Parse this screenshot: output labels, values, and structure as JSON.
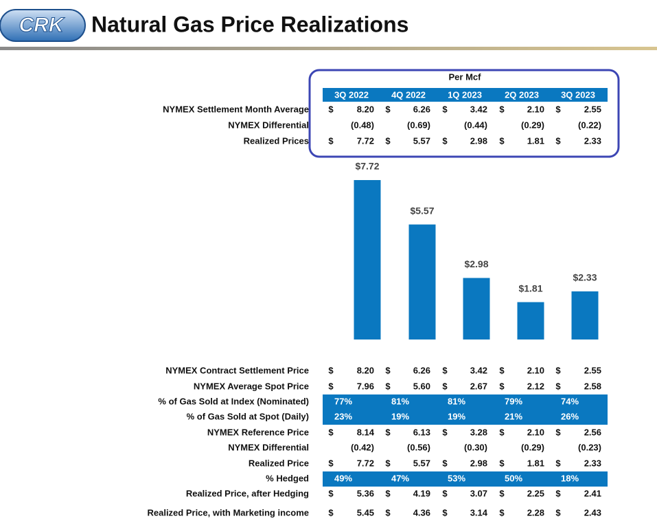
{
  "header": {
    "logo": "CRK",
    "title": "Natural Gas Price Realizations"
  },
  "top_table": {
    "caption": "Per Mcf",
    "columns": [
      "3Q 2022",
      "4Q 2022",
      "1Q 2023",
      "2Q 2023",
      "3Q 2023"
    ],
    "rows": [
      {
        "label": "NYMEX Settlement Month Average",
        "unit": "$",
        "cells": [
          "8.20",
          "6.26",
          "3.42",
          "2.10",
          "2.55"
        ]
      },
      {
        "label": "NYMEX Differential",
        "cells": [
          "(0.48)",
          "(0.69)",
          "(0.44)",
          "(0.29)",
          "(0.22)"
        ]
      },
      {
        "label": "Realized Prices",
        "unit": "$",
        "cells": [
          "7.72",
          "5.57",
          "2.98",
          "1.81",
          "2.33"
        ]
      }
    ]
  },
  "chart_data": {
    "type": "bar",
    "values": [
      7.72,
      5.57,
      2.98,
      1.81,
      2.33
    ],
    "value_labels": [
      "$7.72",
      "$5.57",
      "$2.98",
      "$1.81",
      "$2.33"
    ],
    "color": "#0a78c0"
  },
  "bottom_table": {
    "rows": [
      {
        "label": "NYMEX Contract Settlement Price",
        "unit": "$",
        "cells": [
          "8.20",
          "6.26",
          "3.42",
          "2.10",
          "2.55"
        ]
      },
      {
        "label": "NYMEX Average Spot Price",
        "unit": "$",
        "cells": [
          "7.96",
          "5.60",
          "2.67",
          "2.12",
          "2.58"
        ]
      },
      {
        "label": "% of Gas Sold at Index (Nominated)",
        "highlight": true,
        "cells": [
          "77%",
          "81%",
          "81%",
          "79%",
          "74%"
        ]
      },
      {
        "label": "% of Gas Sold at Spot (Daily)",
        "highlight": true,
        "cells": [
          "23%",
          "19%",
          "19%",
          "21%",
          "26%"
        ]
      },
      {
        "label": "NYMEX Reference Price",
        "unit": "$",
        "cells": [
          "8.14",
          "6.13",
          "3.28",
          "2.10",
          "2.56"
        ]
      },
      {
        "label": "NYMEX Differential",
        "cells": [
          "(0.42)",
          "(0.56)",
          "(0.30)",
          "(0.29)",
          "(0.23)"
        ]
      },
      {
        "label": "Realized Price",
        "unit": "$",
        "cells": [
          "7.72",
          "5.57",
          "2.98",
          "1.81",
          "2.33"
        ]
      },
      {
        "label": "% Hedged",
        "highlight": true,
        "cells": [
          "49%",
          "47%",
          "53%",
          "50%",
          "18%"
        ]
      },
      {
        "label": "Realized Price, after Hedging",
        "unit": "$",
        "cells": [
          "5.36",
          "4.19",
          "3.07",
          "2.25",
          "2.41"
        ]
      },
      {
        "label": "Realized Price, with Marketing income",
        "unit": "$",
        "cells": [
          "5.45",
          "4.36",
          "3.14",
          "2.28",
          "2.43"
        ]
      }
    ]
  }
}
